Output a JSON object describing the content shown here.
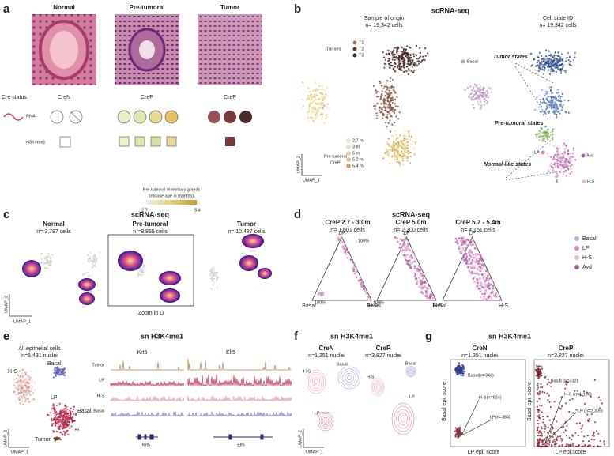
{
  "a": {
    "letter": "a",
    "columns": [
      "Normal",
      "Pre-tumoral",
      "Tumor"
    ],
    "cre_status": "Cre status",
    "cre": [
      "CreN",
      "CreP",
      "CreP"
    ],
    "rows": [
      "RNA",
      "H3K4me1"
    ],
    "legend_title": "Pre-tumoral mammary glands",
    "legend_sub": "(mouse age in months)",
    "legend_min": "2.7",
    "legend_max": "5.4"
  },
  "b": {
    "letter": "b",
    "title": "scRNA-seq",
    "left_title": "Sample of origin",
    "left_n": "n= 19,342 cells",
    "right_title": "Cell state ID",
    "right_n": "n= 19,342 cells",
    "tumors": "Tumors",
    "tumor_ids": [
      "T1",
      "T2",
      "T3"
    ],
    "basal": "Basal",
    "pretumoral": "Pre-tumoral",
    "crep": "CreP",
    "ages": [
      "2.7 m",
      "3 m",
      "5 m",
      "5.2 m",
      "5.4 m"
    ],
    "umap2": "UMAP_2",
    "umap1": "UMAP_1",
    "tumor_states": "Tumor states",
    "pretumoral_states": "Pre-tumoral states",
    "normal_states": "Normal-like states",
    "lp": "LP",
    "avd": "Avd",
    "hs": "H-S"
  },
  "c": {
    "letter": "c",
    "title": "scRNA-seq",
    "panels": [
      {
        "name": "Normal",
        "n": "n= 3,787 cells"
      },
      {
        "name": "Pre-tumoral",
        "n": "n =8,855 cells"
      },
      {
        "name": "Tumor",
        "n": "n= 10,487 cells"
      }
    ],
    "zoom": "Zoom in D",
    "umap2": "UMAP_2",
    "umap1": "UMAP_1"
  },
  "d": {
    "letter": "d",
    "title": "scRNA-seq",
    "panels": [
      {
        "name": "CreP 2.7 - 3.0m",
        "n": "n= 1,601 cells"
      },
      {
        "name": "CreP 5.0m",
        "n": "n= 2,200 cells"
      },
      {
        "name": "CreP 5.2 - 5.4m",
        "n": "n= 4,161 cells"
      }
    ],
    "lp": "LP",
    "basal": "Basal",
    "hs": "H-S",
    "pct": "100%",
    "legend": [
      "Basal",
      "LP",
      "H-S",
      "Avd"
    ]
  },
  "e": {
    "letter": "e",
    "title": "sn H3K4me1",
    "all": "All epithelial cells",
    "n": "n=5,431 nuclei",
    "clusters": [
      "H-S",
      "Basal",
      "LP",
      "Basal",
      "Tumor"
    ],
    "umap2": "UMAP_2",
    "umap1": "UMAP_1",
    "genes": [
      "Krt5",
      "Elf5"
    ],
    "tracks": [
      "Tumor",
      "LP",
      "H-S",
      "Basal"
    ]
  },
  "f": {
    "letter": "f",
    "title": "sn H3K4me1",
    "left": "CreN",
    "left_n": "n=1,351 nuclei",
    "right": "CreP",
    "right_n": "n=3,827 nuclei",
    "labels": [
      "H-S",
      "Basal",
      "LP",
      "H-S",
      "Basal",
      "LP"
    ],
    "umap2": "UMAP_2",
    "umap1": "UMAP_1"
  },
  "g": {
    "letter": "g",
    "title": "sn H3K4me1",
    "left": "CreN",
    "left_n": "n=1,351 nuclei",
    "right": "CreP",
    "right_n": "n=3,827 nuclei",
    "ylabel": "Basal epi. score",
    "xlabel_left": "LP epi. score",
    "xlabel_right": "LP epi.score",
    "left_labels": [
      "Basal(n=343)",
      "H-S(n=624)",
      "LP(n=384)"
    ],
    "right_labels": [
      "Basal (n=332)",
      "H-S (n=1,186)",
      "LP (n=2,309)"
    ]
  }
}
